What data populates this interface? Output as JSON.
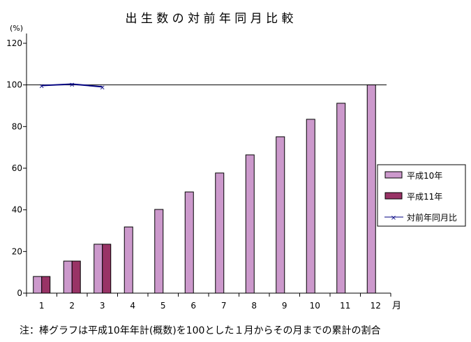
{
  "chart_data": {
    "type": "bar",
    "title": "出 生 数 の 対 前 年 同 月 比 較",
    "ylabel": "(%)",
    "xlabel": "月",
    "ylim": [
      0,
      120
    ],
    "yticks": [
      0,
      20,
      40,
      60,
      80,
      100,
      120
    ],
    "grid": false,
    "reference_line": 100,
    "categories": [
      "1",
      "2",
      "3",
      "4",
      "5",
      "6",
      "7",
      "8",
      "9",
      "10",
      "11",
      "12"
    ],
    "series": [
      {
        "name": "平成10年",
        "kind": "bar",
        "color": "#cc99cc",
        "values": [
          8.0,
          15.4,
          23.5,
          31.8,
          40.2,
          48.6,
          57.7,
          66.4,
          75.1,
          83.5,
          91.2,
          100
        ]
      },
      {
        "name": "平成11年",
        "kind": "bar",
        "color": "#993366",
        "values": [
          8.0,
          15.4,
          23.5,
          null,
          null,
          null,
          null,
          null,
          null,
          null,
          null,
          null
        ]
      },
      {
        "name": "対前年同月比",
        "kind": "line",
        "color": "#000080",
        "values": [
          99.7,
          100.4,
          99.1,
          null,
          null,
          null,
          null,
          null,
          null,
          null,
          null,
          null
        ]
      }
    ],
    "legend_position": "right",
    "note": "注：棒グラフは平成10年年計(概数)を100とした１月からその月までの累計の割合"
  }
}
